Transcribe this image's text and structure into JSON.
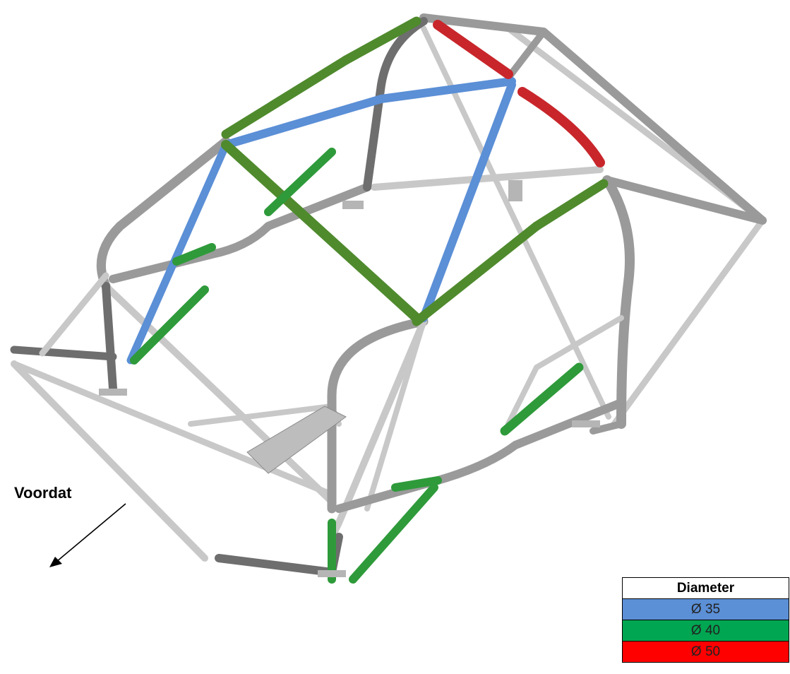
{
  "figure": {
    "direction_label": "Voordat"
  },
  "legend": {
    "header": "Diameter",
    "rows": [
      {
        "label": "Ø 35",
        "color": "#5b8fd6"
      },
      {
        "label": "Ø 40",
        "color": "#00a651"
      },
      {
        "label": "Ø 50",
        "color": "#ff0000"
      }
    ]
  },
  "colors": {
    "tube_light": "#c8c8c8",
    "tube_mid": "#9a9a9a",
    "tube_dark": "#6e6e6e",
    "tube_blue": "#5b8fd6",
    "tube_green": "#4f8a2d",
    "tube_green_bright": "#2e9a3a",
    "tube_red": "#c8262b"
  }
}
